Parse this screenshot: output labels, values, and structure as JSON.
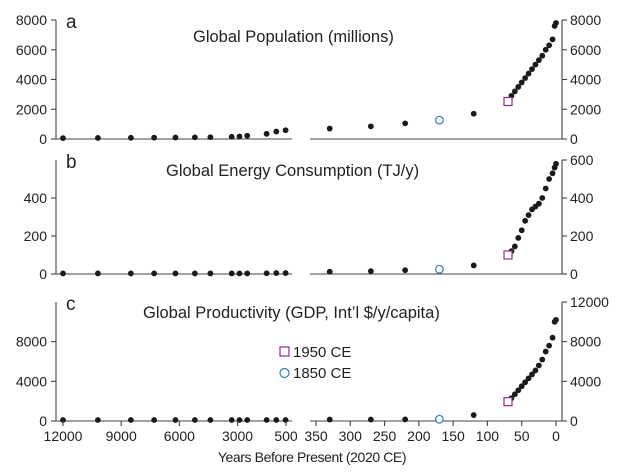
{
  "chart_data": [
    {
      "panel": "a",
      "type": "scatter",
      "title": "Global Population (millions)",
      "xlabel": "Years Before Present (2020 CE)",
      "ylim": [
        0,
        8000
      ],
      "yticks": [
        0,
        2000,
        4000,
        6000,
        8000
      ],
      "ytick_labels_left": [
        "0",
        "2000",
        "4000",
        "6000",
        "8000"
      ],
      "ytick_labels_right": [
        "0",
        "2000",
        "4000",
        "6000",
        "8000"
      ],
      "left_x": [
        12000,
        10200,
        8500,
        7300,
        6200,
        5200,
        4400,
        3300,
        2900,
        2500,
        1500,
        1000,
        520
      ],
      "left_y": [
        60,
        70,
        80,
        90,
        100,
        110,
        120,
        150,
        170,
        220,
        350,
        500,
        590
      ],
      "right_x": [
        330,
        270,
        220,
        170,
        120,
        70,
        65,
        60,
        55,
        50,
        45,
        40,
        35,
        30,
        25,
        20,
        15,
        10,
        5,
        2,
        0
      ],
      "right_y": [
        700,
        850,
        1050,
        1270,
        1700,
        2520,
        2900,
        3200,
        3500,
        3800,
        4100,
        4400,
        4700,
        5000,
        5300,
        5600,
        6000,
        6300,
        6700,
        7600,
        7800
      ],
      "markers": [
        {
          "series": "1950 CE",
          "x": 70,
          "y": 2520
        },
        {
          "series": "1850 CE",
          "x": 170,
          "y": 1270
        }
      ]
    },
    {
      "panel": "b",
      "type": "scatter",
      "title": "Global Energy Consumption (TJ/y)",
      "ylim": [
        0,
        600
      ],
      "yticks_left": [
        0,
        200,
        400
      ],
      "ytick_labels_left": [
        "0",
        "200",
        "400"
      ],
      "yticks_right": [
        0,
        200,
        400,
        600
      ],
      "ytick_labels_right": [
        "0",
        "200",
        "400",
        "600"
      ],
      "left_x": [
        12000,
        10200,
        8500,
        7300,
        6200,
        5200,
        4400,
        3300,
        2900,
        2500,
        1500,
        1000,
        520
      ],
      "left_y": [
        3,
        3,
        3,
        3,
        3,
        3,
        3,
        3,
        3,
        3,
        4,
        5,
        5
      ],
      "right_x": [
        330,
        270,
        220,
        170,
        120,
        70,
        65,
        60,
        55,
        50,
        45,
        40,
        35,
        30,
        25,
        20,
        15,
        10,
        5,
        2,
        0
      ],
      "right_y": [
        12,
        15,
        20,
        25,
        45,
        100,
        120,
        145,
        190,
        230,
        280,
        310,
        340,
        355,
        370,
        400,
        450,
        500,
        530,
        560,
        580
      ],
      "markers": [
        {
          "series": "1950 CE",
          "x": 70,
          "y": 100
        },
        {
          "series": "1850 CE",
          "x": 170,
          "y": 25
        }
      ]
    },
    {
      "panel": "c",
      "type": "scatter",
      "title": "Global Productivity (GDP, Int’l $/y/capita)",
      "ylim": [
        0,
        12000
      ],
      "yticks_left": [
        0,
        4000,
        8000
      ],
      "ytick_labels_left": [
        "0",
        "4000",
        "8000"
      ],
      "yticks_right": [
        0,
        4000,
        8000,
        12000
      ],
      "ytick_labels_right": [
        "0",
        "4000",
        "8000",
        "12000"
      ],
      "xticks_left": [
        12000,
        9000,
        6000,
        3000,
        500
      ],
      "xtick_labels_left": [
        "12000",
        "9000",
        "6000",
        "3000",
        "500"
      ],
      "xticks_right": [
        350,
        300,
        250,
        200,
        150,
        100,
        50,
        0
      ],
      "xtick_labels_right": [
        "350",
        "300",
        "250",
        "200",
        "150",
        "100",
        "50",
        "0"
      ],
      "left_x": [
        12000,
        10200,
        8500,
        7300,
        6200,
        5200,
        4400,
        3300,
        2900,
        2500,
        1500,
        1000,
        520
      ],
      "left_y": [
        100,
        100,
        100,
        100,
        100,
        100,
        100,
        100,
        100,
        100,
        100,
        100,
        100
      ],
      "right_x": [
        330,
        270,
        220,
        170,
        120,
        70,
        65,
        60,
        55,
        50,
        45,
        40,
        35,
        30,
        25,
        20,
        15,
        10,
        5,
        2,
        0
      ],
      "right_y": [
        150,
        150,
        160,
        180,
        600,
        1950,
        2300,
        2700,
        3100,
        3500,
        3900,
        4300,
        4700,
        5100,
        5600,
        6200,
        7000,
        7600,
        8400,
        10000,
        10200
      ],
      "markers": [
        {
          "series": "1950 CE",
          "x": 70,
          "y": 1950
        },
        {
          "series": "1850 CE",
          "x": 170,
          "y": 180
        }
      ]
    }
  ],
  "legend": [
    {
      "label": "1950 CE",
      "marker": "open-square",
      "color": "#8b2c8b"
    },
    {
      "label": "1850 CE",
      "marker": "open-circle",
      "color": "#2e7bbf"
    }
  ],
  "colors": {
    "points": "#1a1a1a",
    "square": "#8b2c8b",
    "circle": "#2e7bbf"
  }
}
